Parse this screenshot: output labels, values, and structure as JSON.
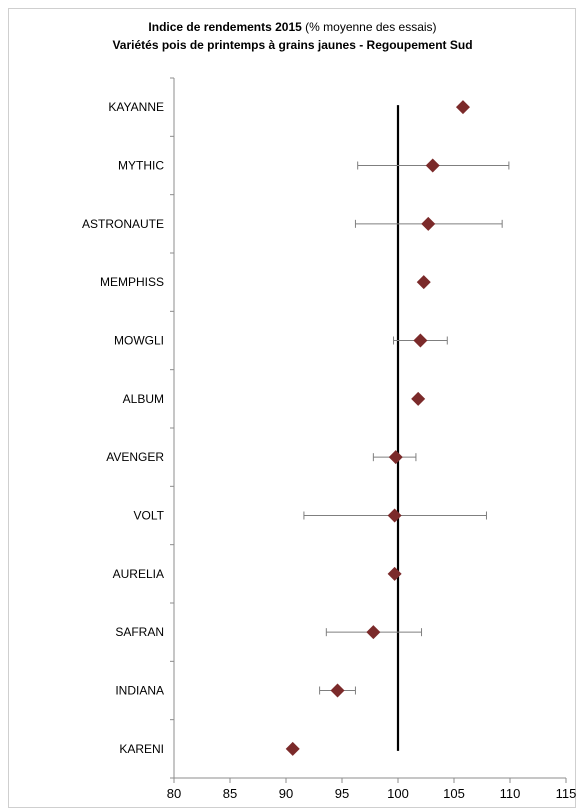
{
  "title_bold": "Indice de rendements 2015",
  "title_rest": " (% moyenne des essais)",
  "subtitle": "Variétés pois de printemps à grains jaunes - Regoupement Sud",
  "colors": {
    "marker": "#7b2a2a",
    "reference_line": "#000000",
    "error_bar": "#7f7f7f",
    "axis": "#8c8c8c"
  },
  "chart_data": {
    "type": "scatter",
    "orientation": "horizontal",
    "title": "Indice de rendements 2015 (% moyenne des essais)",
    "subtitle": "Variétés pois de printemps à grains jaunes - Regoupement Sud",
    "xlim": [
      80,
      115
    ],
    "xticks": [
      80,
      85,
      90,
      95,
      100,
      105,
      110,
      115
    ],
    "reference_x": 100,
    "grid": false,
    "categories": [
      "KAYANNE",
      "MYTHIC",
      "ASTRONAUTE",
      "MEMPHISS",
      "MOWGLI",
      "ALBUM",
      "AVENGER",
      "VOLT",
      "AURELIA",
      "SAFRAN",
      "INDIANA",
      "KARENI"
    ],
    "values": [
      105.8,
      103.1,
      102.7,
      102.3,
      102.0,
      101.8,
      99.8,
      99.7,
      99.7,
      97.8,
      94.6,
      90.6
    ],
    "error_low": [
      null,
      96.4,
      96.2,
      null,
      99.6,
      null,
      97.8,
      91.6,
      null,
      93.6,
      93.0,
      null
    ],
    "error_high": [
      null,
      109.9,
      109.3,
      null,
      104.4,
      null,
      101.6,
      107.9,
      null,
      102.1,
      96.2,
      null
    ]
  }
}
